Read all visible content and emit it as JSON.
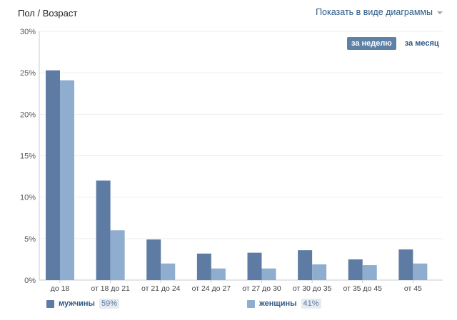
{
  "header": {
    "title": "Пол / Возраст",
    "view_toggle": "Показать в виде диаграммы"
  },
  "period": {
    "week_label": "за неделю",
    "month_label": "за месяц",
    "active": "week"
  },
  "legend": {
    "men": {
      "label": "мужчины",
      "percent": "59%"
    },
    "women": {
      "label": "женщины",
      "percent": "41%"
    }
  },
  "colors": {
    "men": "#5e7ca3",
    "women": "#8eadcf",
    "grid": "#ebeef2",
    "axis": "#c5cdd6"
  },
  "chart_data": {
    "type": "bar",
    "categories": [
      "до 18",
      "от 18 до 21",
      "от 21 до 24",
      "от 24 до 27",
      "от 27 до 30",
      "от 30 до 35",
      "от 35 до 45",
      "от 45"
    ],
    "series": [
      {
        "name": "мужчины",
        "values": [
          25.3,
          12.0,
          4.9,
          3.2,
          3.3,
          3.6,
          2.5,
          3.7
        ]
      },
      {
        "name": "женщины",
        "values": [
          24.1,
          6.0,
          2.0,
          1.4,
          1.4,
          1.9,
          1.8,
          2.0
        ]
      }
    ],
    "yticks": [
      "0%",
      "5%",
      "10%",
      "15%",
      "20%",
      "25%",
      "30%"
    ],
    "ylim": [
      0,
      30
    ],
    "grid": true,
    "legend_position": "bottom"
  }
}
